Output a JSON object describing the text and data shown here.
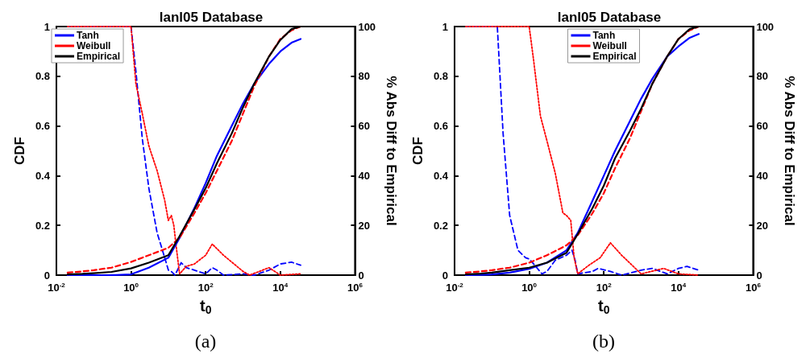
{
  "chart_data": [
    {
      "type": "line",
      "title": "lanl05 Database",
      "xlabel": "t$_{0}$",
      "ylabel": "CDF",
      "y2label": "% Abs Diff to Empirical",
      "log": "x",
      "grid": false,
      "legend": "top left",
      "marker": "none",
      "annotations": [
        "(a)"
      ],
      "xlim": [
        0.01,
        1000000
      ],
      "xticks": [
        {
          "value": 0.01,
          "label": "10$^{-2}$"
        },
        {
          "value": 1,
          "label": "10$^{0}$"
        },
        {
          "value": 100,
          "label": "10$^{2}$"
        },
        {
          "value": 10000,
          "label": "10$^{4}$"
        },
        {
          "value": 1000000,
          "label": "10$^{6}$"
        }
      ],
      "ylim": [
        0,
        1
      ],
      "yticks": [
        0,
        0.2,
        0.4,
        0.6,
        0.8,
        1
      ],
      "y2lim": [
        0,
        100
      ],
      "y2ticks": [
        0,
        20,
        40,
        60,
        80,
        100
      ],
      "x": [
        0.02,
        0.05,
        0.1,
        0.3,
        1,
        3,
        10,
        20,
        50,
        100,
        200,
        500,
        1000,
        2000,
        5000,
        10000,
        20000,
        35000
      ],
      "series": [
        {
          "name": "Tanh",
          "color": "#0000ff",
          "line_style": "solid",
          "values": [
            0,
            0,
            0,
            0,
            0.003,
            0.03,
            0.07,
            0.15,
            0.27,
            0.37,
            0.48,
            0.6,
            0.69,
            0.77,
            0.85,
            0.9,
            0.935,
            0.95
          ]
        },
        {
          "name": "Weibull",
          "color": "#ff0000",
          "line_style": "dashed",
          "values": [
            0.01,
            0.015,
            0.02,
            0.03,
            0.053,
            0.08,
            0.11,
            0.15,
            0.25,
            0.33,
            0.42,
            0.54,
            0.65,
            0.76,
            0.88,
            0.95,
            0.985,
            1.0
          ]
        },
        {
          "name": "Empirical",
          "color": "#000000",
          "line_style": "solid",
          "values": [
            0.003,
            0.005,
            0.008,
            0.013,
            0.027,
            0.05,
            0.08,
            0.157,
            0.265,
            0.35,
            0.45,
            0.57,
            0.675,
            0.77,
            0.88,
            0.946,
            0.99,
            1.0
          ]
        },
        {
          "color": "#0000ff",
          "line_style": "dashed",
          "axis": "y2",
          "x": [
            0.02,
            1,
            1.35,
            2,
            3,
            5,
            8,
            10,
            12,
            15,
            22,
            30,
            50,
            100,
            150,
            200,
            300,
            1000,
            2000,
            5000,
            10000,
            20000,
            35000
          ],
          "values": [
            100,
            100,
            82,
            55,
            35,
            17,
            7,
            2,
            1.5,
            0,
            5,
            3,
            2,
            0.5,
            3,
            2,
            0,
            0.5,
            0,
            2,
            4.5,
            5.2,
            4
          ]
        },
        {
          "color": "#ff0000",
          "line_style": "dotted",
          "axis": "y2",
          "x": [
            0.02,
            1,
            1.35,
            2,
            3,
            5,
            8,
            10,
            12,
            14,
            17,
            20,
            30,
            50,
            100,
            150,
            300,
            1000,
            1500,
            5000,
            10000,
            35000
          ],
          "values": [
            100,
            100,
            77,
            65,
            52,
            42,
            30,
            22,
            24,
            20,
            9,
            0.5,
            3.5,
            4.5,
            8,
            12.5,
            8,
            1.5,
            0,
            3,
            0,
            0.5
          ]
        }
      ]
    },
    {
      "type": "line",
      "title": "lanl05 Database",
      "xlabel": "t$_{0}$",
      "ylabel": "CDF",
      "y2label": "% Abs Diff to Empirical",
      "log": "x",
      "grid": false,
      "legend": "top",
      "marker": "none",
      "annotations": [
        "(b)"
      ],
      "xlim": [
        0.01,
        1000000
      ],
      "xticks": [
        {
          "value": 0.01,
          "label": "10$^{-2}$"
        },
        {
          "value": 1,
          "label": "10$^{0}$"
        },
        {
          "value": 100,
          "label": "10$^{2}$"
        },
        {
          "value": 10000,
          "label": "10$^{4}$"
        },
        {
          "value": 1000000,
          "label": "10$^{6}$"
        }
      ],
      "ylim": [
        0,
        1
      ],
      "yticks": [
        0,
        0.2,
        0.4,
        0.6,
        0.8,
        1
      ],
      "y2lim": [
        0,
        100
      ],
      "y2ticks": [
        0,
        20,
        40,
        60,
        80,
        100
      ],
      "x": [
        0.02,
        0.05,
        0.1,
        0.3,
        1,
        3,
        10,
        20,
        50,
        100,
        200,
        500,
        1000,
        2000,
        5000,
        10000,
        20000,
        35000
      ],
      "series": [
        {
          "name": "Tanh",
          "color": "#0000ff",
          "line_style": "solid",
          "values": [
            0,
            0.001,
            0.003,
            0.01,
            0.025,
            0.05,
            0.1,
            0.17,
            0.3,
            0.4,
            0.5,
            0.62,
            0.71,
            0.79,
            0.88,
            0.92,
            0.955,
            0.97
          ]
        },
        {
          "name": "Weibull",
          "color": "#ff0000",
          "line_style": "dashed",
          "values": [
            0.01,
            0.015,
            0.02,
            0.03,
            0.05,
            0.08,
            0.12,
            0.16,
            0.25,
            0.33,
            0.43,
            0.55,
            0.66,
            0.77,
            0.88,
            0.95,
            0.985,
            1.0
          ]
        },
        {
          "name": "Empirical",
          "color": "#000000",
          "line_style": "solid",
          "values": [
            0.003,
            0.006,
            0.01,
            0.02,
            0.03,
            0.05,
            0.09,
            0.165,
            0.27,
            0.36,
            0.47,
            0.58,
            0.67,
            0.77,
            0.88,
            0.95,
            0.99,
            1.0
          ]
        },
        {
          "color": "#0000ff",
          "line_style": "dashed",
          "axis": "y2",
          "x": [
            0.02,
            0.14,
            0.2,
            0.3,
            0.5,
            0.8,
            1,
            1.5,
            2.2,
            3,
            5,
            10,
            14,
            17,
            20,
            50,
            70,
            150,
            300,
            1000,
            2000,
            5000,
            10000,
            17000,
            35000
          ],
          "values": [
            100,
            100,
            57,
            24,
            10,
            7,
            6.5,
            3.5,
            0.5,
            1.5,
            6,
            8,
            10,
            6,
            0.5,
            1.5,
            2.7,
            1.5,
            0,
            2,
            2.7,
            0.5,
            2.7,
            3.5,
            2
          ]
        },
        {
          "color": "#ff0000",
          "line_style": "dotted",
          "axis": "y2",
          "x": [
            0.02,
            1,
            1.3,
            2,
            3,
            5,
            8,
            10,
            13,
            16,
            20,
            40,
            80,
            150,
            300,
            1000,
            4000,
            10000,
            35000
          ],
          "values": [
            100,
            100,
            87,
            64,
            54,
            41,
            25,
            24,
            22,
            7,
            0.5,
            4,
            7,
            13,
            8,
            0.5,
            2.7,
            0.5,
            0
          ]
        }
      ]
    }
  ]
}
